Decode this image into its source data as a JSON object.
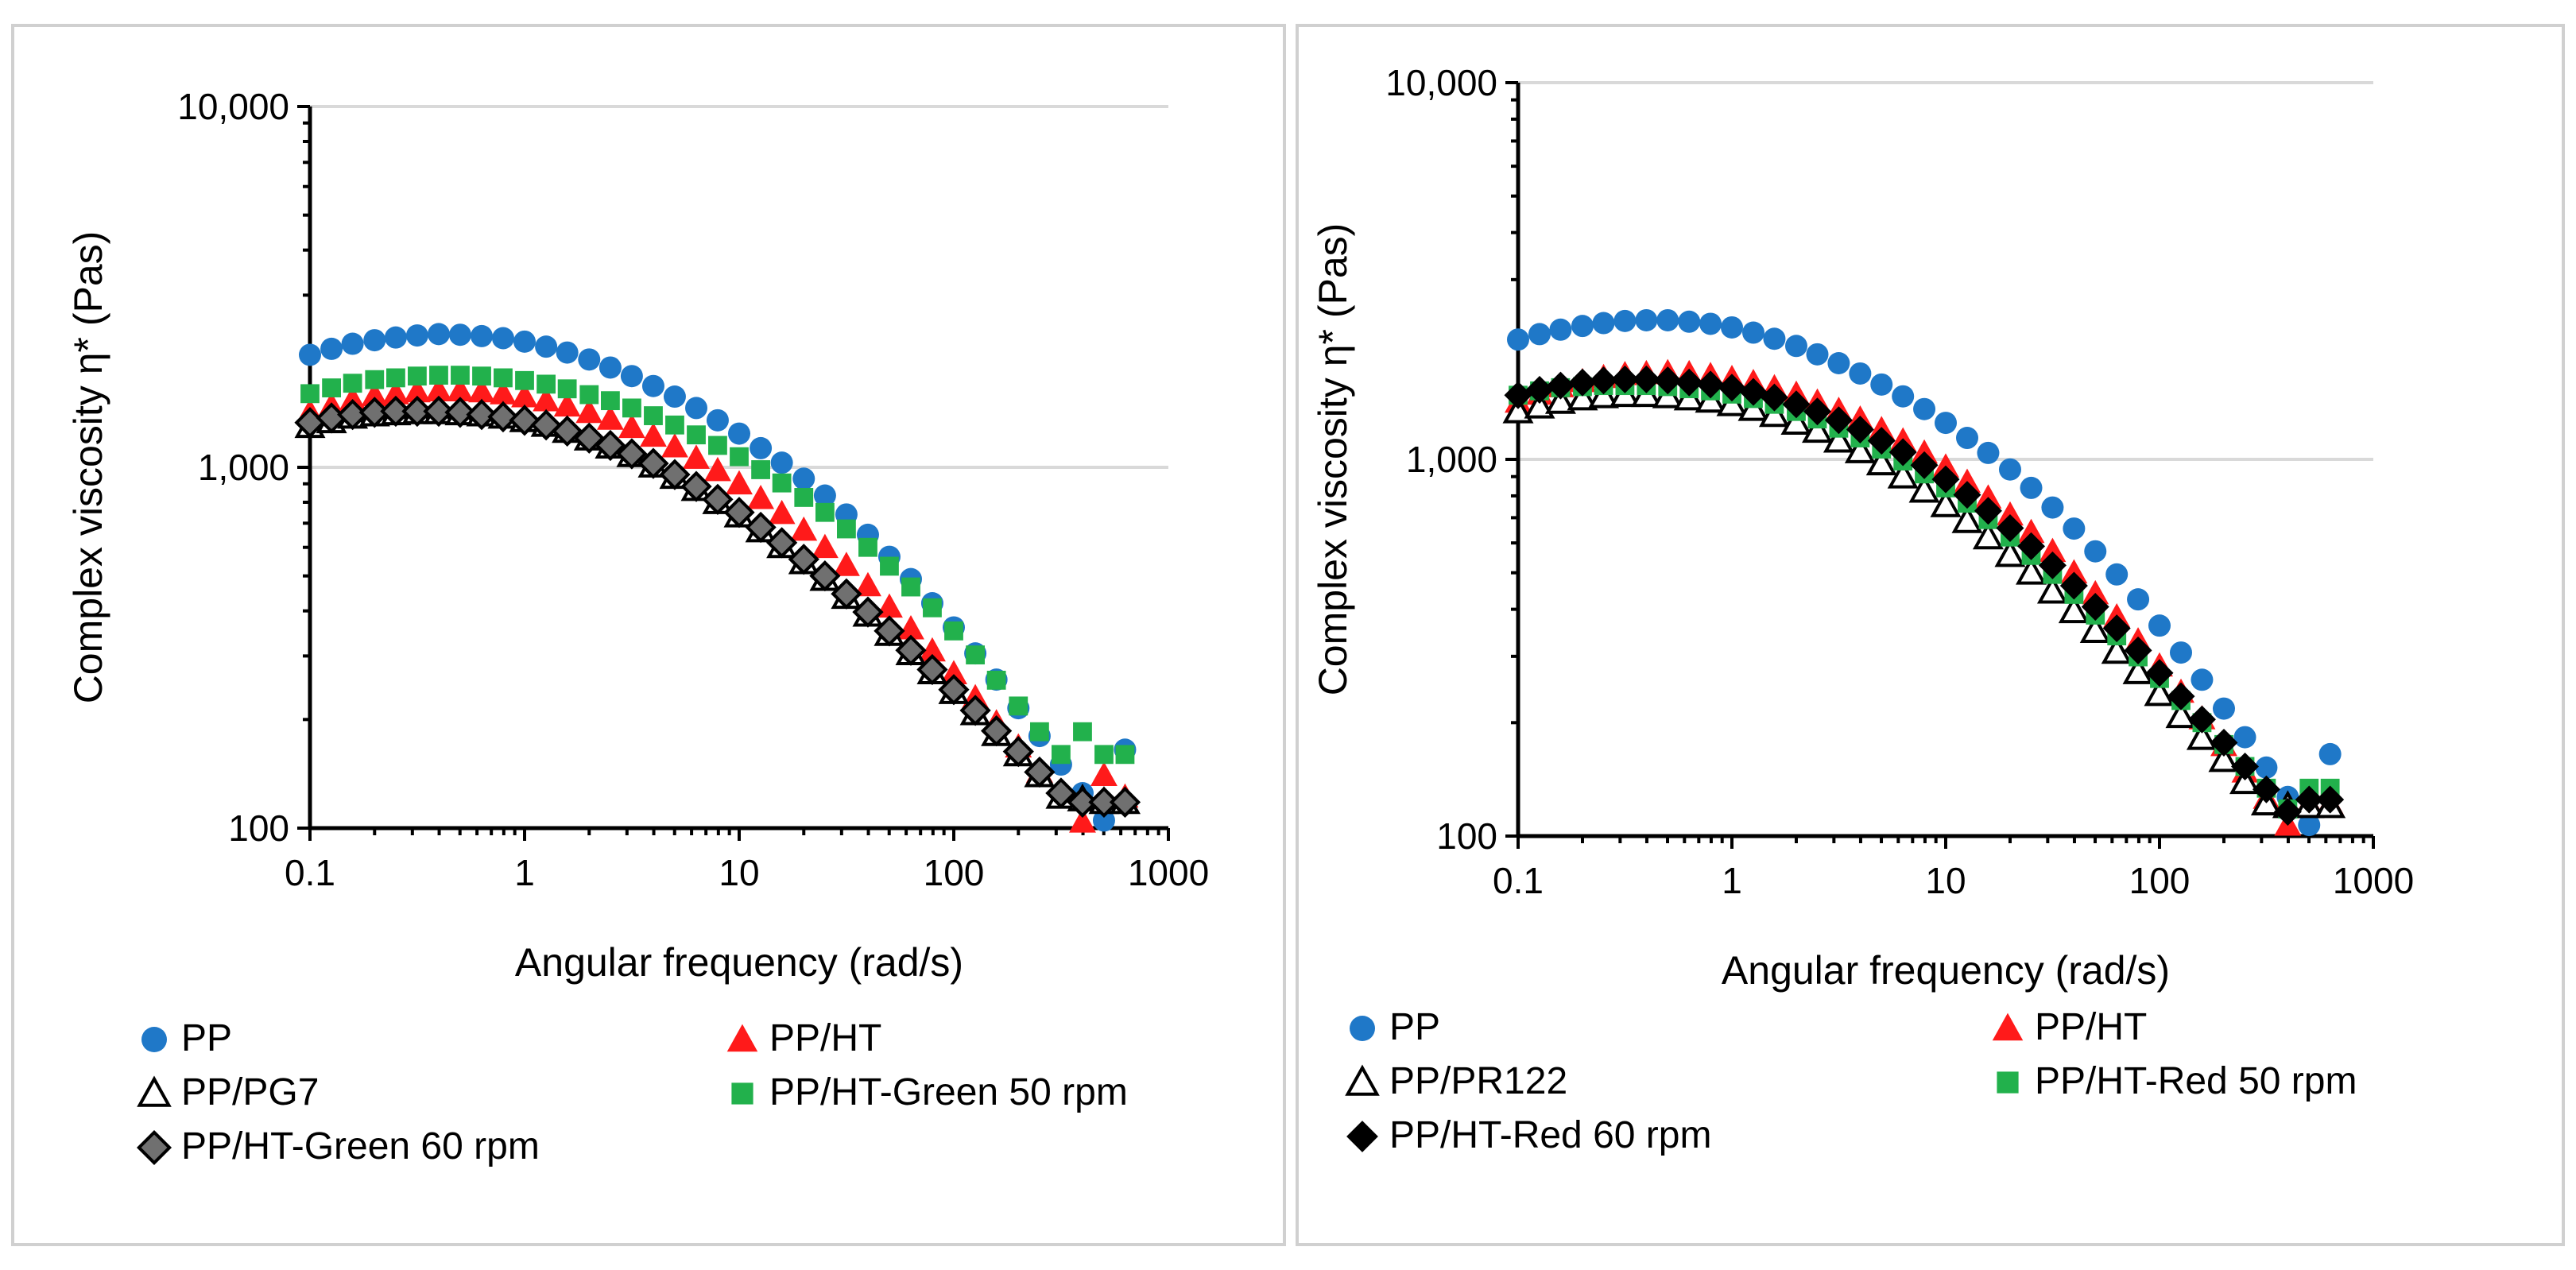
{
  "chart_data": [
    {
      "type": "scatter",
      "xscale": "log",
      "yscale": "log",
      "xlabel": "Angular frequency (rad/s)",
      "ylabel": "Complex viscosity η* (Pas)",
      "xlim": [
        0.1,
        1000
      ],
      "ylim": [
        100,
        10000
      ],
      "xticks": [
        0.1,
        1,
        10,
        100,
        1000
      ],
      "xtick_labels": [
        "0.1",
        "1",
        "10",
        "100",
        "1000"
      ],
      "yticks": [
        100,
        1000,
        10000
      ],
      "ytick_labels": [
        "100",
        "1,000",
        "10,000"
      ],
      "legend_position": "bottom",
      "x": [
        0.1,
        0.126,
        0.158,
        0.2,
        0.251,
        0.316,
        0.398,
        0.501,
        0.631,
        0.794,
        1,
        1.26,
        1.58,
        2,
        2.51,
        3.16,
        3.98,
        5.01,
        6.31,
        7.94,
        10,
        12.6,
        15.8,
        20,
        25.1,
        31.6,
        39.8,
        50.1,
        63.1,
        79.4,
        100,
        126,
        158,
        200,
        251,
        316,
        398,
        501,
        628
      ],
      "series": [
        {
          "name": "PP",
          "marker": "circle",
          "color": "#1F78C8",
          "values": [
            2050,
            2130,
            2200,
            2250,
            2290,
            2320,
            2340,
            2330,
            2310,
            2280,
            2230,
            2160,
            2080,
            1990,
            1890,
            1790,
            1680,
            1570,
            1460,
            1350,
            1240,
            1130,
            1030,
            930,
            835,
            740,
            650,
            565,
            490,
            420,
            360,
            305,
            258,
            215,
            180,
            150,
            125,
            105,
            165
          ]
        },
        {
          "name": "PP/HT",
          "marker": "triangle",
          "color": "#FF1A1A",
          "values": [
            1420,
            1480,
            1540,
            1580,
            1600,
            1620,
            1630,
            1630,
            1620,
            1600,
            1570,
            1530,
            1480,
            1420,
            1360,
            1290,
            1220,
            1140,
            1060,
            980,
            900,
            820,
            745,
            670,
            600,
            535,
            470,
            410,
            357,
            310,
            268,
            230,
            196,
            168,
            143,
            122,
            104,
            140,
            122
          ]
        },
        {
          "name": "PP/PG7",
          "marker": "triangle-open",
          "color": "#000000",
          "values": [
            1300,
            1340,
            1380,
            1400,
            1410,
            1420,
            1420,
            1410,
            1400,
            1380,
            1350,
            1310,
            1260,
            1200,
            1140,
            1080,
            1010,
            940,
            870,
            800,
            735,
            668,
            604,
            545,
            490,
            437,
            390,
            345,
            305,
            270,
            238,
            208,
            182,
            160,
            140,
            122,
            120,
            118,
            118
          ]
        },
        {
          "name": "PP/HT-Green 50 rpm",
          "marker": "square",
          "color": "#22B14C",
          "values": [
            1600,
            1660,
            1710,
            1750,
            1770,
            1790,
            1800,
            1800,
            1790,
            1770,
            1740,
            1700,
            1650,
            1590,
            1530,
            1460,
            1390,
            1310,
            1230,
            1150,
            1070,
            985,
            905,
            825,
            750,
            675,
            600,
            532,
            466,
            408,
            352,
            302,
            257,
            218,
            185,
            160,
            185,
            160,
            160
          ]
        },
        {
          "name": "PP/HT-Green 60 rpm",
          "marker": "diamond-gray",
          "color": "#000000",
          "values": [
            1330,
            1370,
            1400,
            1420,
            1430,
            1430,
            1430,
            1420,
            1400,
            1380,
            1350,
            1310,
            1260,
            1205,
            1150,
            1090,
            1025,
            955,
            885,
            815,
            750,
            682,
            618,
            556,
            500,
            446,
            397,
            352,
            311,
            275,
            242,
            212,
            186,
            163,
            143,
            125,
            118,
            118,
            118
          ]
        }
      ]
    },
    {
      "type": "scatter",
      "xscale": "log",
      "yscale": "log",
      "xlabel": "Angular frequency (rad/s)",
      "ylabel": "Complex viscosity η* (Pas)",
      "xlim": [
        0.1,
        1000
      ],
      "ylim": [
        100,
        10000
      ],
      "xticks": [
        0.1,
        1,
        10,
        100,
        1000
      ],
      "xtick_labels": [
        "0.1",
        "1",
        "10",
        "100",
        "1000"
      ],
      "yticks": [
        100,
        1000,
        10000
      ],
      "ytick_labels": [
        "100",
        "1,000",
        "10,000"
      ],
      "legend_position": "bottom",
      "x": [
        0.1,
        0.126,
        0.158,
        0.2,
        0.251,
        0.316,
        0.398,
        0.501,
        0.631,
        0.794,
        1,
        1.26,
        1.58,
        2,
        2.51,
        3.16,
        3.98,
        5.01,
        6.31,
        7.94,
        10,
        12.6,
        15.8,
        20,
        25.1,
        31.6,
        39.8,
        50.1,
        63.1,
        79.4,
        100,
        126,
        158,
        200,
        251,
        316,
        398,
        501,
        628
      ],
      "series": [
        {
          "name": "PP",
          "marker": "circle",
          "color": "#1F78C8",
          "values": [
            2080,
            2150,
            2210,
            2260,
            2300,
            2330,
            2340,
            2340,
            2320,
            2290,
            2240,
            2170,
            2090,
            2000,
            1900,
            1800,
            1690,
            1580,
            1470,
            1360,
            1250,
            1140,
            1040,
            940,
            840,
            745,
            655,
            570,
            495,
            425,
            362,
            307,
            260,
            218,
            183,
            152,
            127,
            107,
            165
          ]
        },
        {
          "name": "PP/HT",
          "marker": "triangle",
          "color": "#FF1A1A",
          "values": [
            1420,
            1490,
            1560,
            1610,
            1650,
            1680,
            1690,
            1700,
            1690,
            1670,
            1640,
            1600,
            1550,
            1490,
            1420,
            1350,
            1280,
            1200,
            1120,
            1040,
            955,
            870,
            790,
            712,
            640,
            570,
            500,
            440,
            382,
            330,
            283,
            241,
            205,
            174,
            148,
            126,
            107,
            122,
            122
          ]
        },
        {
          "name": "PP/PR122",
          "marker": "triangle-open",
          "color": "#000000",
          "values": [
            1340,
            1380,
            1420,
            1450,
            1470,
            1480,
            1480,
            1470,
            1450,
            1430,
            1400,
            1360,
            1310,
            1250,
            1190,
            1120,
            1050,
            975,
            900,
            825,
            755,
            685,
            620,
            557,
            500,
            445,
            395,
            350,
            308,
            272,
            238,
            208,
            182,
            159,
            139,
            122,
            120,
            120,
            120
          ]
        },
        {
          "name": "PP/HT-Red 50 rpm",
          "marker": "square",
          "color": "#22B14C",
          "values": [
            1480,
            1520,
            1550,
            1560,
            1570,
            1570,
            1570,
            1560,
            1540,
            1520,
            1490,
            1450,
            1400,
            1340,
            1280,
            1210,
            1140,
            1065,
            990,
            915,
            840,
            765,
            692,
            622,
            556,
            495,
            438,
            386,
            340,
            299,
            262,
            229,
            200,
            175,
            153,
            134,
            118,
            134,
            134
          ]
        },
        {
          "name": "PP/HT-Red 60 rpm",
          "marker": "diamond",
          "color": "#000000",
          "values": [
            1480,
            1530,
            1570,
            1600,
            1620,
            1630,
            1630,
            1620,
            1600,
            1580,
            1550,
            1510,
            1460,
            1400,
            1340,
            1270,
            1200,
            1120,
            1045,
            965,
            885,
            805,
            730,
            657,
            588,
            523,
            462,
            406,
            356,
            311,
            271,
            235,
            204,
            177,
            153,
            133,
            116,
            125,
            125
          ]
        }
      ]
    }
  ]
}
